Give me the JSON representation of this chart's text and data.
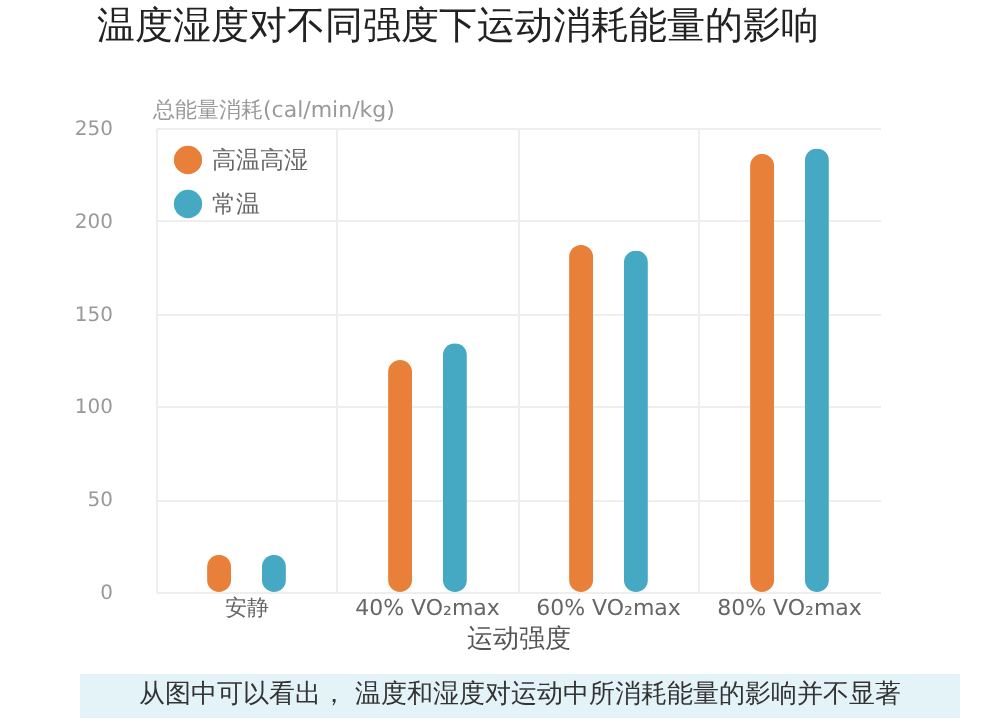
{
  "chart_data": {
    "type": "bar",
    "title": "温度湿度对不同强度下运动消耗能量的影响",
    "ylabel": "总能量消耗(cal/min/kg)",
    "xlabel": "运动强度",
    "categories": [
      "安静",
      "40% VO₂max",
      "60% VO₂max",
      "80% VO₂max"
    ],
    "series": [
      {
        "name": "高温高湿",
        "color": "#e8803a",
        "values": [
          20,
          125,
          187,
          236
        ]
      },
      {
        "name": "常温",
        "color": "#46a9c4",
        "values": [
          20,
          134,
          184,
          239
        ]
      }
    ],
    "ylim": [
      0,
      250
    ],
    "yticks": [
      0,
      50,
      100,
      150,
      200,
      250
    ],
    "grid": true,
    "legend": "top left",
    "annotations": [
      "从图中可以看出， 温度和湿度对运动中所消耗能量的影响并不显著"
    ]
  }
}
